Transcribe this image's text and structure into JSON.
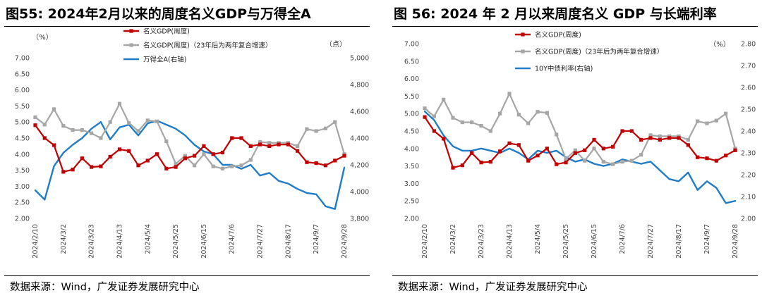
{
  "panels": [
    {
      "title": "图55:  2024年2月以来的周度名义GDP与万得全A",
      "source": "数据来源：Wind，广发证券发展研究中心"
    },
    {
      "title": "图 56:  2024 年 2 月以来周度名义 GDP 与长端利率",
      "source": "数据来源：Wind，广发证券发展研究中心"
    }
  ],
  "colors": {
    "red": "#C00000",
    "gray": "#A6A6A6",
    "blue": "#1F7DC8"
  },
  "chart_data": [
    {
      "type": "line",
      "x_ticks": [
        "2024/2/10",
        "2024/3/2",
        "2024/3/23",
        "2024/4/13",
        "2024/5/4",
        "2024/5/25",
        "2024/6/15",
        "2024/7/6",
        "2024/7/27",
        "2024/8/17",
        "2024/9/7",
        "2024/9/28"
      ],
      "left_unit": "（%）",
      "right_unit": "（点）",
      "left_ylim": [
        2.0,
        7.0
      ],
      "left_ticks": [
        "2.00",
        "2.50",
        "3.00",
        "3.50",
        "4.00",
        "4.50",
        "5.00",
        "5.50",
        "6.00",
        "6.50",
        "7.00"
      ],
      "right_ylim": [
        3800,
        5000
      ],
      "right_ticks": [
        "3,800",
        "4,000",
        "4,200",
        "4,400",
        "4,600",
        "4,800",
        "5,000"
      ],
      "grid": false,
      "legend_position": "top-center",
      "series": [
        {
          "name": "名义GDP(周度)",
          "axis": "left",
          "color": "red",
          "markers": true,
          "values": [
            4.9,
            4.5,
            4.28,
            3.45,
            3.52,
            3.87,
            3.6,
            3.62,
            3.92,
            4.15,
            4.1,
            3.65,
            3.8,
            4.0,
            3.55,
            3.6,
            3.87,
            3.95,
            4.25,
            4.0,
            4.05,
            4.5,
            4.5,
            4.25,
            4.3,
            4.25,
            4.3,
            4.3,
            4.1,
            3.75,
            3.72,
            3.65,
            3.8,
            3.95
          ]
        },
        {
          "name": "名义GDP(周度)（23年后为两年复合增速）",
          "axis": "left",
          "color": "gray",
          "markers": true,
          "values": [
            5.15,
            4.92,
            5.4,
            4.88,
            4.75,
            4.75,
            4.65,
            4.5,
            5.0,
            5.57,
            4.97,
            4.72,
            5.05,
            5.02,
            4.4,
            3.7,
            3.95,
            3.65,
            4.0,
            3.62,
            3.55,
            3.62,
            3.65,
            3.82,
            4.38,
            4.35,
            4.35,
            4.35,
            4.25,
            4.78,
            4.72,
            4.8,
            5.0,
            4.0
          ]
        },
        {
          "name": "万得全A(右轴)",
          "axis": "right",
          "color": "blue",
          "markers": false,
          "values": [
            4010,
            3940,
            4190,
            4290,
            4350,
            4400,
            4470,
            4520,
            4390,
            4480,
            4500,
            4420,
            4510,
            4530,
            4500,
            4470,
            4420,
            4350,
            4300,
            4280,
            4200,
            4200,
            4170,
            4200,
            4120,
            4140,
            4080,
            4060,
            4020,
            3990,
            3980,
            3890,
            3870,
            4180
          ]
        }
      ]
    },
    {
      "type": "line",
      "x_ticks": [
        "2024/2/10",
        "2024/3/2",
        "2024/3/23",
        "2024/4/13",
        "2024/5/4",
        "2024/5/25",
        "2024/6/15",
        "2024/7/6",
        "2024/7/27",
        "2024/8/17",
        "2024/9/7",
        "2024/9/28"
      ],
      "left_unit": "",
      "right_unit": "（%）",
      "left_ylim": [
        2.0,
        7.0
      ],
      "left_ticks": [
        "2.00",
        "2.50",
        "3.00",
        "3.50",
        "4.00",
        "4.50",
        "5.00",
        "5.50",
        "6.00",
        "6.50",
        "7.00"
      ],
      "right_ylim": [
        2.0,
        2.8
      ],
      "right_ticks": [
        "2.00",
        "2.10",
        "2.20",
        "2.30",
        "2.40",
        "2.50",
        "2.60",
        "2.70",
        "2.80"
      ],
      "grid": false,
      "legend_position": "top-center",
      "series": [
        {
          "name": "名义GDP(周度)",
          "axis": "left",
          "color": "red",
          "markers": true,
          "values": [
            4.9,
            4.5,
            4.28,
            3.45,
            3.52,
            3.87,
            3.6,
            3.62,
            3.92,
            4.15,
            4.1,
            3.65,
            3.8,
            4.0,
            3.55,
            3.6,
            3.87,
            3.95,
            4.25,
            4.0,
            4.05,
            4.5,
            4.5,
            4.25,
            4.3,
            4.25,
            4.3,
            4.3,
            4.1,
            3.75,
            3.72,
            3.65,
            3.8,
            3.95
          ]
        },
        {
          "name": "名义GDP(周度)（23年后为两年复合增速）",
          "axis": "left",
          "color": "gray",
          "markers": true,
          "values": [
            5.15,
            4.92,
            5.4,
            4.88,
            4.75,
            4.75,
            4.65,
            4.5,
            5.0,
            5.57,
            4.97,
            4.72,
            5.05,
            5.02,
            4.4,
            3.7,
            3.95,
            3.65,
            4.0,
            3.62,
            3.55,
            3.62,
            3.65,
            3.82,
            4.38,
            4.35,
            4.35,
            4.35,
            4.25,
            4.78,
            4.72,
            4.8,
            5.0,
            4.0
          ]
        },
        {
          "name": "10Y中债利率(右轴)",
          "axis": "right",
          "color": "blue",
          "markers": false,
          "values": [
            2.49,
            2.45,
            2.38,
            2.33,
            2.31,
            2.31,
            2.32,
            2.31,
            2.3,
            2.32,
            2.3,
            2.27,
            2.31,
            2.3,
            2.31,
            2.28,
            2.26,
            2.27,
            2.25,
            2.24,
            2.25,
            2.27,
            2.26,
            2.25,
            2.26,
            2.22,
            2.18,
            2.17,
            2.21,
            2.13,
            2.17,
            2.14,
            2.07,
            2.08
          ]
        }
      ]
    }
  ]
}
